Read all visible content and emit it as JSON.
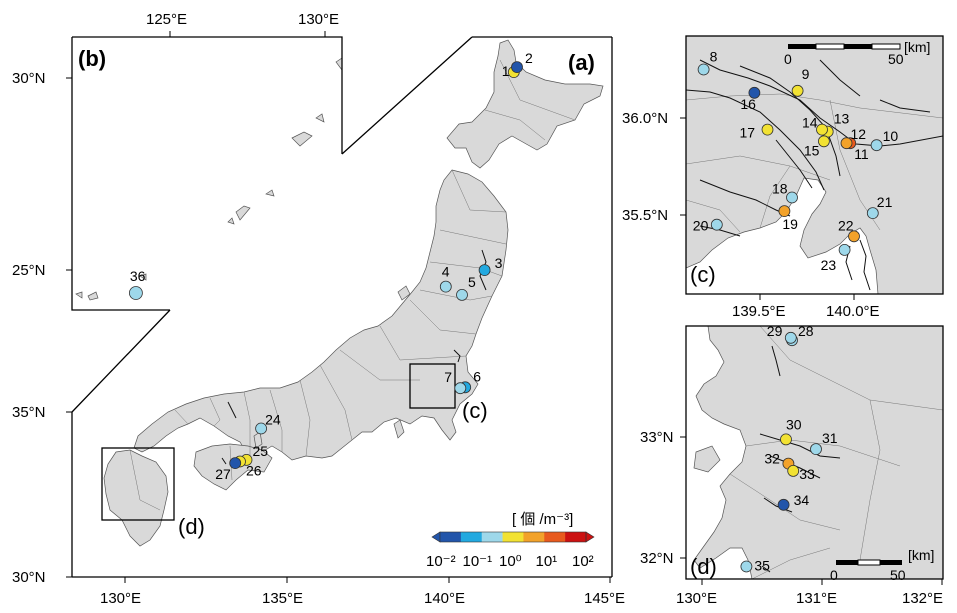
{
  "colors": {
    "c1": "#2255aa",
    "c2": "#22a9e0",
    "c3": "#9ed8ea",
    "c4": "#f2e233",
    "c5": "#f2a22a",
    "c6": "#e85a1e",
    "c7": "#cc1111",
    "land": "#d9d9d9"
  },
  "legend": {
    "title": "[ 個 /m⁻³]",
    "labels": [
      "10⁻²",
      "10⁻¹",
      "10⁰",
      "10¹",
      "10²"
    ]
  },
  "panels": {
    "a": {
      "label": "(a)",
      "lon_ticks": [
        "130°E",
        "135°E",
        "140°E",
        "145°E"
      ],
      "lat_ticks": [
        "30°N",
        "35°N"
      ]
    },
    "b": {
      "label": "(b)",
      "lon_ticks": [
        "125°E",
        "130°E"
      ],
      "lat_ticks": [
        "30°N",
        "25°N"
      ]
    },
    "c": {
      "label": "(c)",
      "lon_ticks": [
        "139.5°E",
        "140.0°E"
      ],
      "lat_ticks": [
        "36.0°N",
        "35.5°N"
      ],
      "scale_labels": [
        "0",
        "50",
        "[km]"
      ]
    },
    "d": {
      "label": "(d)",
      "lon_ticks": [
        "130°E",
        "131°E",
        "132°E"
      ],
      "lat_ticks": [
        "33°N",
        "32°N"
      ],
      "scale_labels": [
        "0",
        "50",
        "[km]"
      ]
    }
  },
  "sites": [
    {
      "id": "1",
      "lon": 142.0,
      "lat": 45.3,
      "color": "c4"
    },
    {
      "id": "2",
      "lon": 142.1,
      "lat": 45.45,
      "color": "c1"
    },
    {
      "id": "3",
      "lon": 141.1,
      "lat": 39.3,
      "color": "c2"
    },
    {
      "id": "4",
      "lon": 139.9,
      "lat": 38.8,
      "color": "c3"
    },
    {
      "id": "5",
      "lon": 140.4,
      "lat": 38.55,
      "color": "c3"
    },
    {
      "id": "6",
      "lon": 140.5,
      "lat": 35.75,
      "color": "c2"
    },
    {
      "id": "7",
      "lon": 140.35,
      "lat": 35.72,
      "color": "c3"
    },
    {
      "id": "8",
      "lon": 139.2,
      "lat": 36.25,
      "color": "c3"
    },
    {
      "id": "9",
      "lon": 139.7,
      "lat": 36.14,
      "color": "c4"
    },
    {
      "id": "10",
      "lon": 140.12,
      "lat": 35.86,
      "color": "c3"
    },
    {
      "id": "11",
      "lon": 139.98,
      "lat": 35.87,
      "color": "c6"
    },
    {
      "id": "12",
      "lon": 139.96,
      "lat": 35.87,
      "color": "c5"
    },
    {
      "id": "13",
      "lon": 139.86,
      "lat": 35.93,
      "color": "c4"
    },
    {
      "id": "14",
      "lon": 139.83,
      "lat": 35.94,
      "color": "c4"
    },
    {
      "id": "15",
      "lon": 139.84,
      "lat": 35.88,
      "color": "c4"
    },
    {
      "id": "16",
      "lon": 139.47,
      "lat": 36.13,
      "color": "c1"
    },
    {
      "id": "17",
      "lon": 139.54,
      "lat": 35.94,
      "color": "c4"
    },
    {
      "id": "18",
      "lon": 139.67,
      "lat": 35.59,
      "color": "c3"
    },
    {
      "id": "19",
      "lon": 139.63,
      "lat": 35.52,
      "color": "c5"
    },
    {
      "id": "20",
      "lon": 139.27,
      "lat": 35.45,
      "color": "c3"
    },
    {
      "id": "21",
      "lon": 140.1,
      "lat": 35.51,
      "color": "c3"
    },
    {
      "id": "22",
      "lon": 140.0,
      "lat": 35.39,
      "color": "c5"
    },
    {
      "id": "23",
      "lon": 139.95,
      "lat": 35.32,
      "color": "c3"
    },
    {
      "id": "24",
      "lon": 134.2,
      "lat": 34.5,
      "color": "c3"
    },
    {
      "id": "25",
      "lon": 133.75,
      "lat": 33.55,
      "color": "c4"
    },
    {
      "id": "26",
      "lon": 133.55,
      "lat": 33.5,
      "color": "c4"
    },
    {
      "id": "27",
      "lon": 133.4,
      "lat": 33.45,
      "color": "c1"
    },
    {
      "id": "28",
      "lon": 130.75,
      "lat": 33.8,
      "color": "c3"
    },
    {
      "id": "29",
      "lon": 130.74,
      "lat": 33.82,
      "color": "c3"
    },
    {
      "id": "30",
      "lon": 130.7,
      "lat": 32.98,
      "color": "c4"
    },
    {
      "id": "31",
      "lon": 130.95,
      "lat": 32.9,
      "color": "c3"
    },
    {
      "id": "32",
      "lon": 130.72,
      "lat": 32.78,
      "color": "c5"
    },
    {
      "id": "33",
      "lon": 130.76,
      "lat": 32.72,
      "color": "c4"
    },
    {
      "id": "34",
      "lon": 130.68,
      "lat": 32.44,
      "color": "c1"
    },
    {
      "id": "35",
      "lon": 130.37,
      "lat": 31.93,
      "color": "c3"
    },
    {
      "id": "36",
      "lon": 123.9,
      "lat": 24.4,
      "color": "c3"
    }
  ]
}
